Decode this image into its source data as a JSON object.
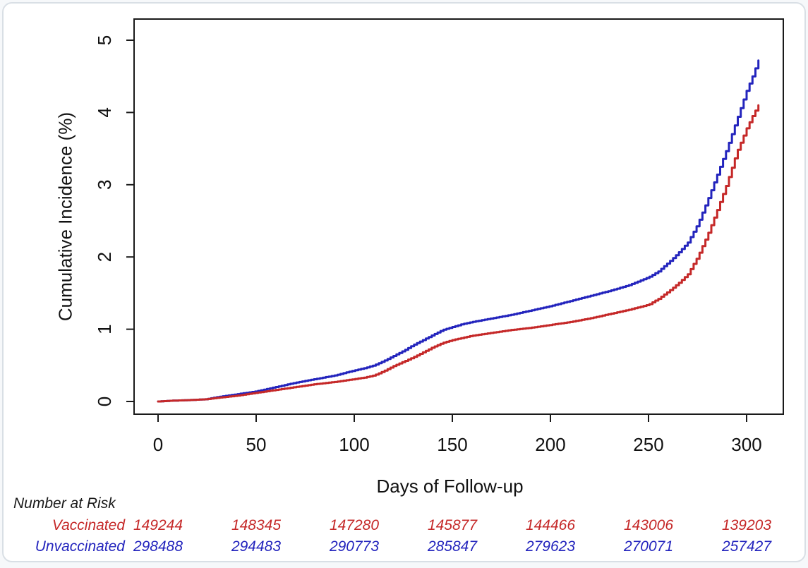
{
  "chart_data": {
    "type": "line",
    "subtype": "kaplan-meier-cumulative-incidence",
    "title": "",
    "xlabel": "Days of Follow-up",
    "ylabel": "Cumulative Incidence (%)",
    "xlim": [
      0,
      318
    ],
    "ylim": [
      0,
      5.45
    ],
    "x_ticks": [
      0,
      50,
      100,
      150,
      200,
      250,
      300
    ],
    "y_ticks": [
      0,
      1,
      2,
      3,
      4,
      5
    ],
    "grid": false,
    "legend_position": "none",
    "axis_color": "#1a1a1a",
    "series": [
      {
        "name": "Unvaccinated",
        "color": "#2324bd",
        "points": [
          [
            0,
            0.0
          ],
          [
            6,
            0.01
          ],
          [
            16,
            0.02
          ],
          [
            24,
            0.03
          ],
          [
            30,
            0.06
          ],
          [
            40,
            0.1
          ],
          [
            50,
            0.14
          ],
          [
            60,
            0.2
          ],
          [
            70,
            0.26
          ],
          [
            80,
            0.31
          ],
          [
            90,
            0.36
          ],
          [
            100,
            0.43
          ],
          [
            105,
            0.46
          ],
          [
            110,
            0.5
          ],
          [
            115,
            0.56
          ],
          [
            120,
            0.63
          ],
          [
            125,
            0.7
          ],
          [
            130,
            0.78
          ],
          [
            135,
            0.85
          ],
          [
            140,
            0.92
          ],
          [
            145,
            0.99
          ],
          [
            150,
            1.03
          ],
          [
            155,
            1.07
          ],
          [
            160,
            1.1
          ],
          [
            170,
            1.15
          ],
          [
            180,
            1.2
          ],
          [
            190,
            1.26
          ],
          [
            200,
            1.32
          ],
          [
            210,
            1.39
          ],
          [
            220,
            1.46
          ],
          [
            230,
            1.53
          ],
          [
            240,
            1.61
          ],
          [
            250,
            1.72
          ],
          [
            255,
            1.8
          ],
          [
            260,
            1.92
          ],
          [
            265,
            2.05
          ],
          [
            270,
            2.2
          ],
          [
            275,
            2.45
          ],
          [
            280,
            2.78
          ],
          [
            285,
            3.14
          ],
          [
            290,
            3.5
          ],
          [
            295,
            3.9
          ],
          [
            300,
            4.3
          ],
          [
            303,
            4.5
          ],
          [
            306,
            4.72
          ]
        ]
      },
      {
        "name": "Vaccinated",
        "color": "#c52828",
        "points": [
          [
            0,
            0.0
          ],
          [
            6,
            0.01
          ],
          [
            16,
            0.02
          ],
          [
            24,
            0.03
          ],
          [
            30,
            0.05
          ],
          [
            40,
            0.08
          ],
          [
            50,
            0.12
          ],
          [
            60,
            0.16
          ],
          [
            70,
            0.2
          ],
          [
            80,
            0.24
          ],
          [
            90,
            0.27
          ],
          [
            100,
            0.31
          ],
          [
            105,
            0.33
          ],
          [
            110,
            0.36
          ],
          [
            115,
            0.42
          ],
          [
            120,
            0.49
          ],
          [
            125,
            0.55
          ],
          [
            130,
            0.61
          ],
          [
            135,
            0.68
          ],
          [
            140,
            0.75
          ],
          [
            145,
            0.81
          ],
          [
            150,
            0.85
          ],
          [
            155,
            0.88
          ],
          [
            160,
            0.91
          ],
          [
            170,
            0.95
          ],
          [
            180,
            0.99
          ],
          [
            190,
            1.02
          ],
          [
            200,
            1.06
          ],
          [
            210,
            1.1
          ],
          [
            220,
            1.15
          ],
          [
            230,
            1.21
          ],
          [
            240,
            1.27
          ],
          [
            250,
            1.34
          ],
          [
            255,
            1.42
          ],
          [
            260,
            1.52
          ],
          [
            265,
            1.63
          ],
          [
            270,
            1.76
          ],
          [
            275,
            2.0
          ],
          [
            280,
            2.3
          ],
          [
            285,
            2.65
          ],
          [
            290,
            3.02
          ],
          [
            295,
            3.45
          ],
          [
            300,
            3.78
          ],
          [
            303,
            3.95
          ],
          [
            306,
            4.1
          ]
        ]
      }
    ]
  },
  "risk_table": {
    "title": "Number at Risk",
    "times": [
      0,
      50,
      100,
      150,
      200,
      250,
      300
    ],
    "rows": [
      {
        "label": "Vaccinated",
        "color": "#c52828",
        "counts": [
          149244,
          148345,
          147280,
          145877,
          144466,
          143006,
          139203
        ]
      },
      {
        "label": "Unvaccinated",
        "color": "#2324bd",
        "counts": [
          298488,
          294483,
          290773,
          285847,
          279623,
          270071,
          257427
        ]
      }
    ]
  }
}
